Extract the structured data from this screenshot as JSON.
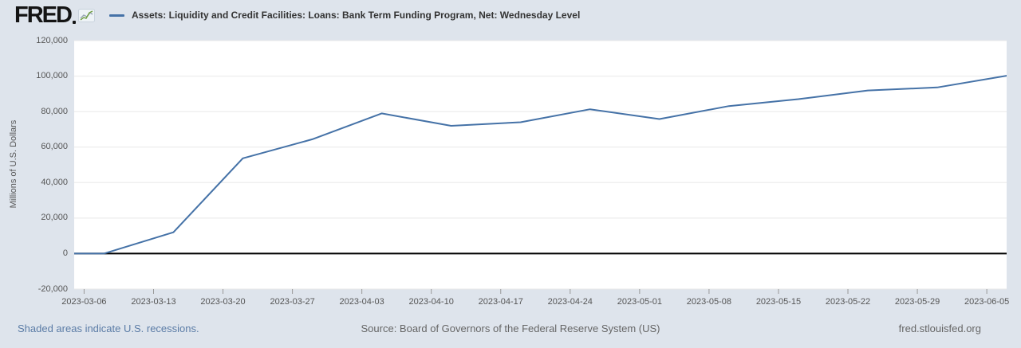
{
  "header": {
    "logo_text": "FRED",
    "logo_icon": "line-graph-icon",
    "series_title": "Assets: Liquidity and Credit Facilities: Loans: Bank Term Funding Program, Net: Wednesday Level"
  },
  "chart_data": {
    "type": "line",
    "title": "Assets: Liquidity and Credit Facilities: Loans: Bank Term Funding Program, Net: Wednesday Level",
    "xlabel": "",
    "ylabel": "Millions of U.S. Dollars",
    "x": [
      "2023-03-01",
      "2023-03-08",
      "2023-03-15",
      "2023-03-22",
      "2023-03-29",
      "2023-04-05",
      "2023-04-12",
      "2023-04-19",
      "2023-04-26",
      "2023-05-03",
      "2023-05-10",
      "2023-05-17",
      "2023-05-24",
      "2023-05-31",
      "2023-06-07"
    ],
    "values": [
      0,
      0,
      12000,
      53700,
      64400,
      79000,
      72000,
      74000,
      81300,
      75800,
      83100,
      87000,
      91900,
      93600,
      100200
    ],
    "x_ticks": [
      "2023-03-06",
      "2023-03-13",
      "2023-03-20",
      "2023-03-27",
      "2023-04-03",
      "2023-04-10",
      "2023-04-17",
      "2023-04-24",
      "2023-05-01",
      "2023-05-08",
      "2023-05-15",
      "2023-05-22",
      "2023-05-29",
      "2023-06-05"
    ],
    "y_ticks": [
      -20000,
      0,
      20000,
      40000,
      60000,
      80000,
      100000,
      120000
    ],
    "xlim": [
      "2023-03-05",
      "2023-06-07"
    ],
    "ylim": [
      -20000,
      120000
    ],
    "grid": "horizontal",
    "zero_line": true,
    "legend_position": "top-header"
  },
  "footer": {
    "recession_note": "Shaded areas indicate U.S. recessions.",
    "source": "Source: Board of Governors of the Federal Reserve System (US)",
    "site": "fred.stlouisfed.org"
  },
  "colors": {
    "background": "#dee4ec",
    "plot_background": "#ffffff",
    "series_line": "#4572a7",
    "gridline": "#e8e8e8",
    "zero_line": "#000000",
    "tick_mark": "#999999",
    "tick_label": "#555555",
    "title_text": "#333333",
    "link_blue": "#5b7ca6",
    "footer_gray": "#666666",
    "logo_green": "#6f9e3f",
    "logo_gray": "#98a6b4"
  }
}
